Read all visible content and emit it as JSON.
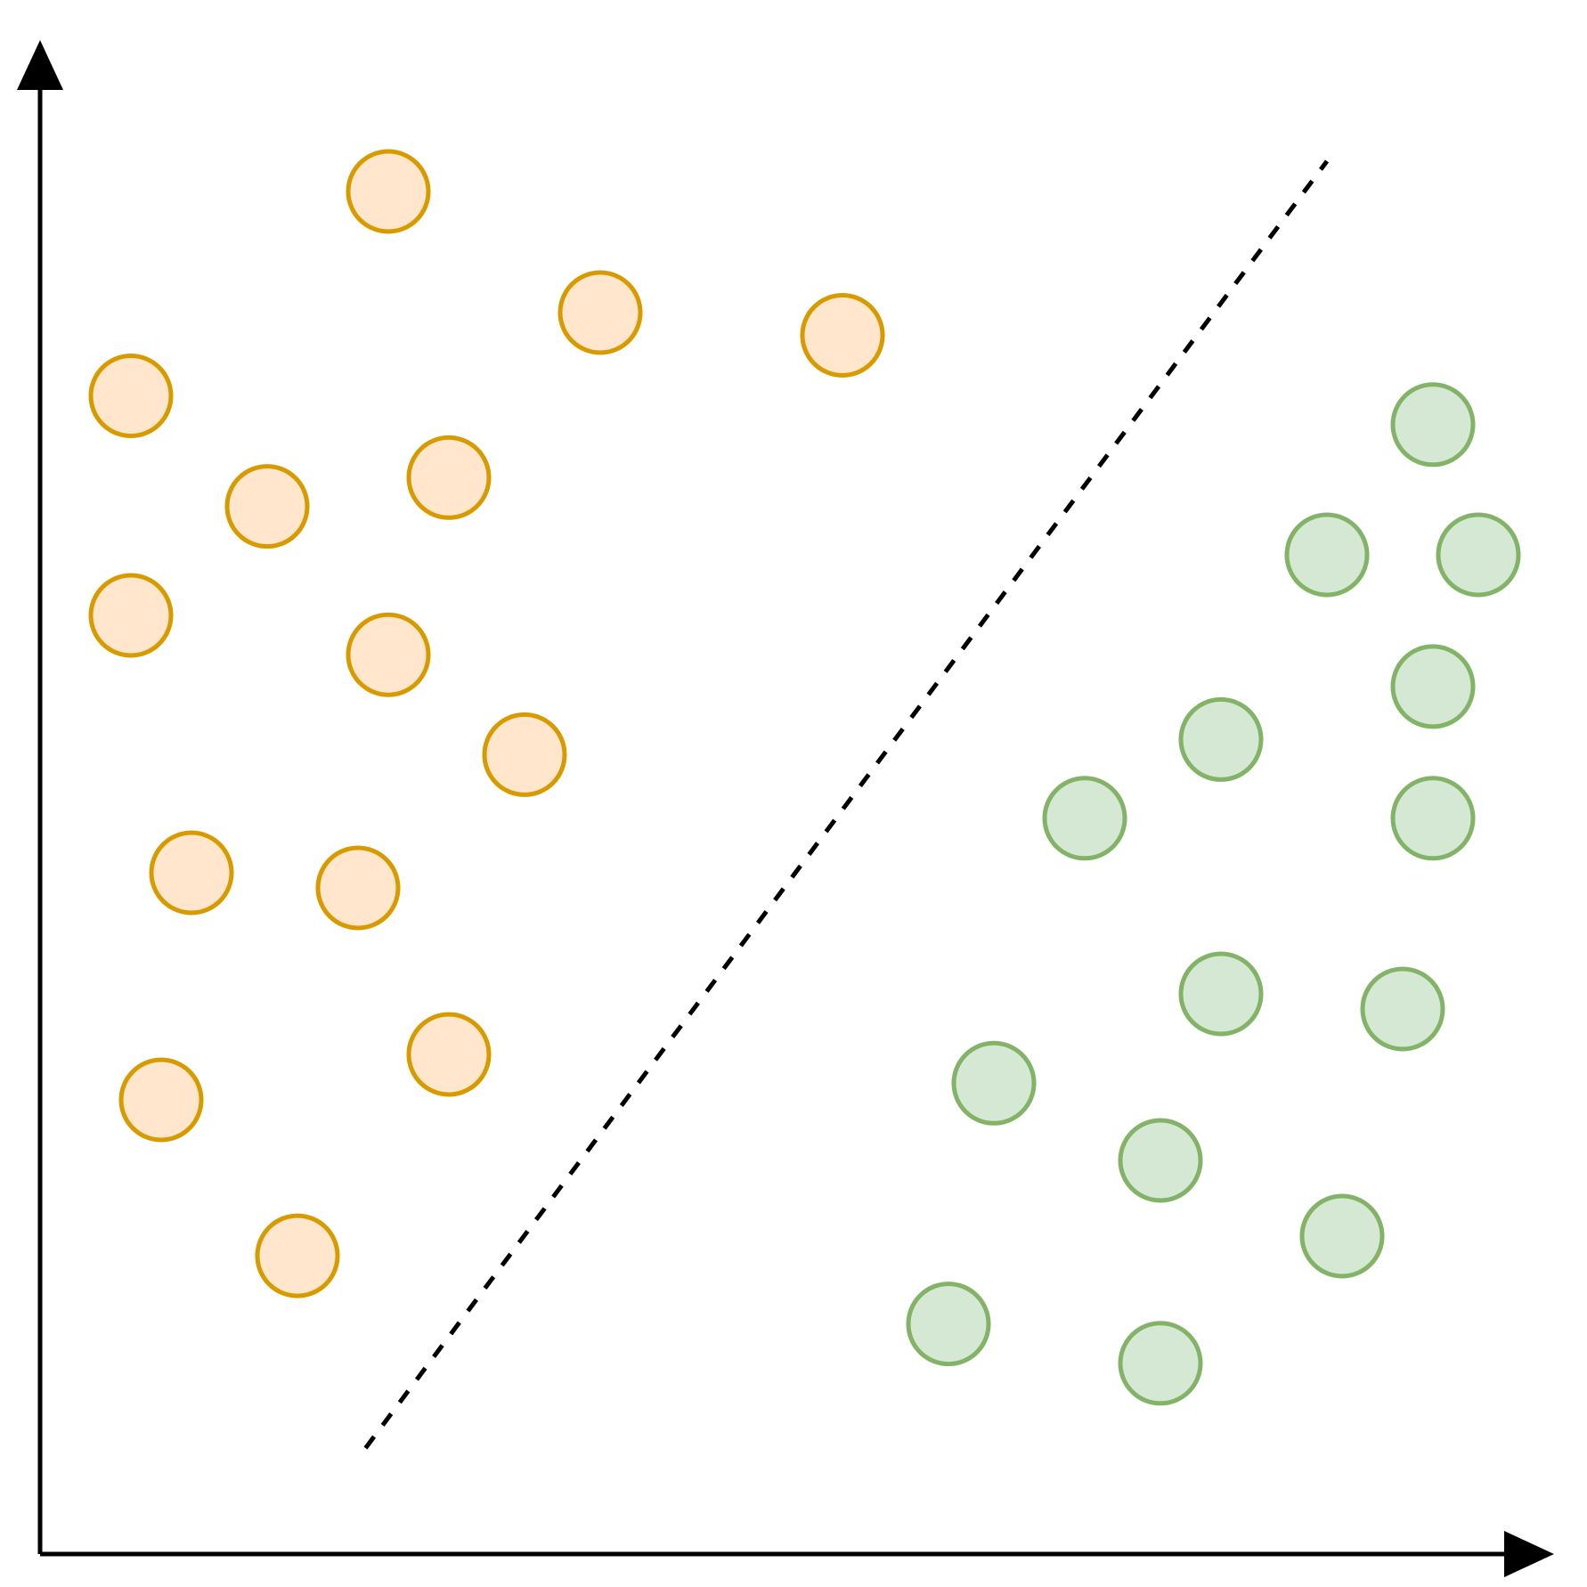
{
  "chart_data": {
    "type": "scatter",
    "title": "",
    "xlabel": "",
    "ylabel": "",
    "xlim": [
      0,
      100
    ],
    "ylim": [
      0,
      100
    ],
    "grid": false,
    "legend": "none",
    "series": [
      {
        "color": "#d79b00",
        "fill": "#ffe6cc",
        "points": [
          [
            23,
            90
          ],
          [
            37,
            82
          ],
          [
            53,
            80.5
          ],
          [
            6,
            76.5
          ],
          [
            27,
            71.1
          ],
          [
            15,
            69.2
          ],
          [
            6,
            62
          ],
          [
            23,
            59.4
          ],
          [
            32,
            52.8
          ],
          [
            10,
            45
          ],
          [
            21,
            44
          ],
          [
            8,
            30
          ],
          [
            27,
            33
          ],
          [
            17,
            19.7
          ]
        ]
      },
      {
        "color": "#82b366",
        "fill": "#d5e8d4",
        "points": [
          [
            92,
            74.6
          ],
          [
            85,
            66
          ],
          [
            95,
            66
          ],
          [
            92,
            57.3
          ],
          [
            78,
            53.8
          ],
          [
            69,
            48.6
          ],
          [
            92,
            48.6
          ],
          [
            78,
            37
          ],
          [
            90,
            36
          ],
          [
            63,
            31.1
          ],
          [
            74,
            26
          ],
          [
            86,
            21
          ],
          [
            60,
            15.2
          ],
          [
            74,
            12.6
          ]
        ]
      }
    ],
    "decision_boundary": {
      "style": "dashed",
      "color": "#000000",
      "from": [
        21.5,
        7
      ],
      "to": [
        85,
        92
      ]
    }
  }
}
